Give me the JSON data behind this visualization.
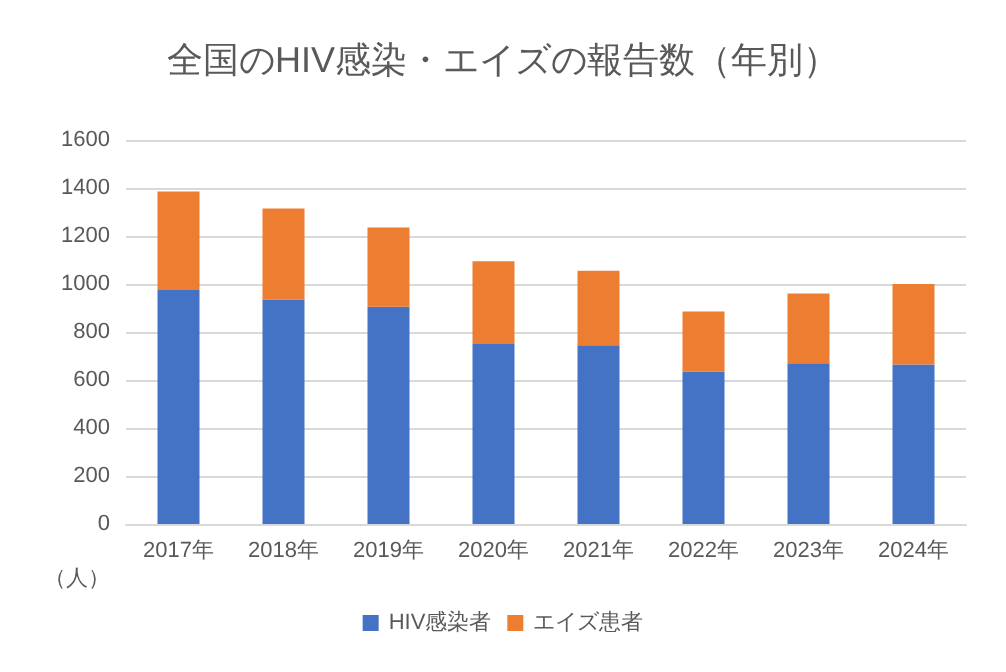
{
  "chart_data": {
    "type": "bar",
    "title": "全国のHIV感染・エイズの報告数（年別）",
    "ylabel": "（人）",
    "categories": [
      "2017年",
      "2018年",
      "2019年",
      "2020年",
      "2021年",
      "2022年",
      "2023年",
      "2024年"
    ],
    "stacked": true,
    "series": [
      {
        "name": "HIV感染者",
        "color": "#4472c4",
        "values": [
          975,
          935,
          905,
          750,
          745,
          635,
          670,
          665
        ]
      },
      {
        "name": "エイズ患者",
        "color": "#ed7d31",
        "values": [
          410,
          380,
          330,
          345,
          310,
          250,
          290,
          335
        ]
      }
    ],
    "ylim": [
      0,
      1600
    ],
    "yticks": [
      0,
      200,
      400,
      600,
      800,
      1000,
      1200,
      1400,
      1600
    ],
    "grid": "y",
    "legend": "bottom"
  }
}
